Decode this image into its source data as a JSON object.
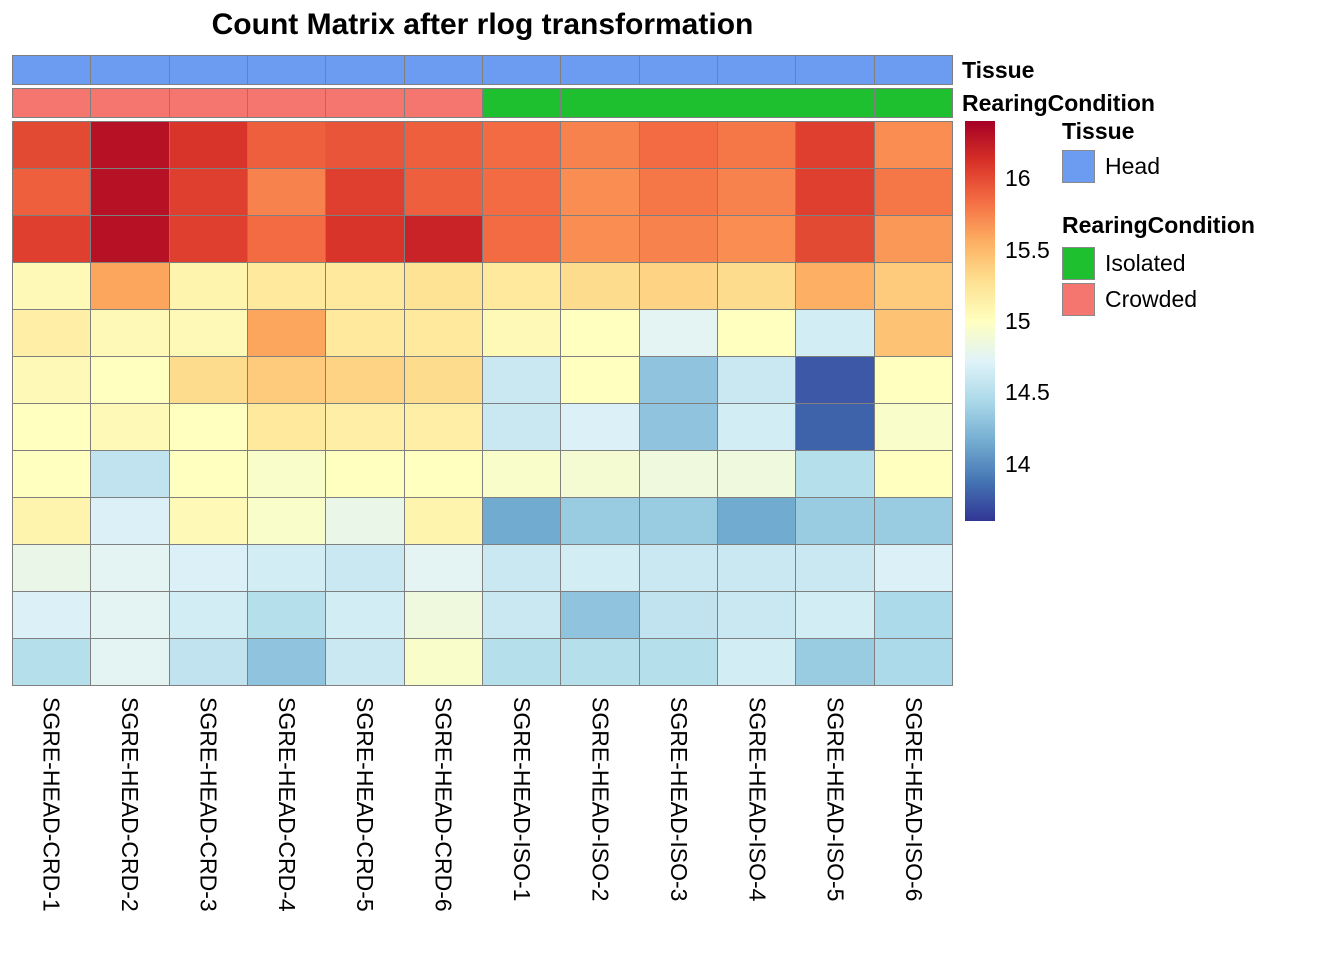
{
  "title": "Count Matrix after rlog transformation",
  "annotations": {
    "tissue_label": "Tissue",
    "rearing_label": "RearingCondition"
  },
  "legend": {
    "tissue": {
      "title": "Tissue",
      "items": [
        {
          "label": "Head",
          "color": "#6C9BF2"
        }
      ]
    },
    "rearing": {
      "title": "RearingCondition",
      "items": [
        {
          "label": "Isolated",
          "color": "#1FC02F"
        },
        {
          "label": "Crowded",
          "color": "#F4766E"
        }
      ]
    }
  },
  "chart_data": {
    "type": "heatmap",
    "title": "Count Matrix after rlog transformation",
    "columns": [
      "SGRE-HEAD-CRD-1",
      "SGRE-HEAD-CRD-2",
      "SGRE-HEAD-CRD-3",
      "SGRE-HEAD-CRD-4",
      "SGRE-HEAD-CRD-5",
      "SGRE-HEAD-CRD-6",
      "SGRE-HEAD-ISO-1",
      "SGRE-HEAD-ISO-2",
      "SGRE-HEAD-ISO-3",
      "SGRE-HEAD-ISO-4",
      "SGRE-HEAD-ISO-5",
      "SGRE-HEAD-ISO-6"
    ],
    "col_annotations": {
      "Tissue": [
        "Head",
        "Head",
        "Head",
        "Head",
        "Head",
        "Head",
        "Head",
        "Head",
        "Head",
        "Head",
        "Head",
        "Head"
      ],
      "RearingCondition": [
        "Crowded",
        "Crowded",
        "Crowded",
        "Crowded",
        "Crowded",
        "Crowded",
        "Isolated",
        "Isolated",
        "Isolated",
        "Isolated",
        "Isolated",
        "Isolated"
      ]
    },
    "annotation_colors": {
      "Head": "#6C9BF2",
      "Crowded": "#F4766E",
      "Isolated": "#1FC02F"
    },
    "values": [
      [
        16.0,
        16.3,
        16.1,
        15.9,
        15.95,
        15.9,
        15.85,
        15.75,
        15.85,
        15.8,
        16.05,
        15.7
      ],
      [
        15.9,
        16.3,
        16.05,
        15.75,
        16.05,
        15.9,
        15.85,
        15.7,
        15.8,
        15.75,
        16.05,
        15.8
      ],
      [
        16.05,
        16.3,
        16.05,
        15.85,
        16.1,
        16.2,
        15.85,
        15.7,
        15.75,
        15.7,
        16.0,
        15.65
      ],
      [
        15.05,
        15.6,
        15.1,
        15.2,
        15.2,
        15.25,
        15.2,
        15.3,
        15.35,
        15.3,
        15.55,
        15.4
      ],
      [
        15.15,
        15.05,
        15.05,
        15.6,
        15.2,
        15.2,
        15.05,
        15.0,
        14.75,
        15.0,
        14.65,
        15.45
      ],
      [
        15.05,
        15.0,
        15.3,
        15.4,
        15.35,
        15.3,
        14.6,
        15.0,
        14.3,
        14.6,
        13.75,
        15.0
      ],
      [
        15.0,
        15.05,
        15.0,
        15.2,
        15.15,
        15.15,
        14.6,
        14.7,
        14.3,
        14.65,
        13.8,
        14.95
      ],
      [
        15.0,
        14.55,
        15.0,
        14.95,
        15.0,
        15.0,
        14.95,
        14.9,
        14.85,
        14.85,
        14.5,
        15.0
      ],
      [
        15.1,
        14.7,
        15.05,
        14.95,
        14.8,
        15.1,
        14.15,
        14.35,
        14.35,
        14.15,
        14.35,
        14.35
      ],
      [
        14.8,
        14.75,
        14.7,
        14.65,
        14.6,
        14.75,
        14.6,
        14.65,
        14.6,
        14.6,
        14.6,
        14.7
      ],
      [
        14.7,
        14.75,
        14.65,
        14.5,
        14.65,
        14.85,
        14.6,
        14.3,
        14.55,
        14.6,
        14.65,
        14.45
      ],
      [
        14.5,
        14.75,
        14.55,
        14.3,
        14.6,
        14.95,
        14.5,
        14.5,
        14.5,
        14.65,
        14.35,
        14.45
      ]
    ],
    "scale": {
      "vmin": 13.6,
      "vmax": 16.4,
      "palette_low_to_high": [
        "#313695",
        "#4575B4",
        "#74ADD1",
        "#ABD9E9",
        "#E0F3F8",
        "#FFFFBF",
        "#FEE090",
        "#FDAE61",
        "#F46D43",
        "#D73027",
        "#A50026"
      ],
      "ticks": [
        16,
        15.5,
        15,
        14.5,
        14
      ],
      "tick_labels": [
        "16",
        "15.5",
        "15",
        "14.5",
        "14"
      ]
    }
  }
}
